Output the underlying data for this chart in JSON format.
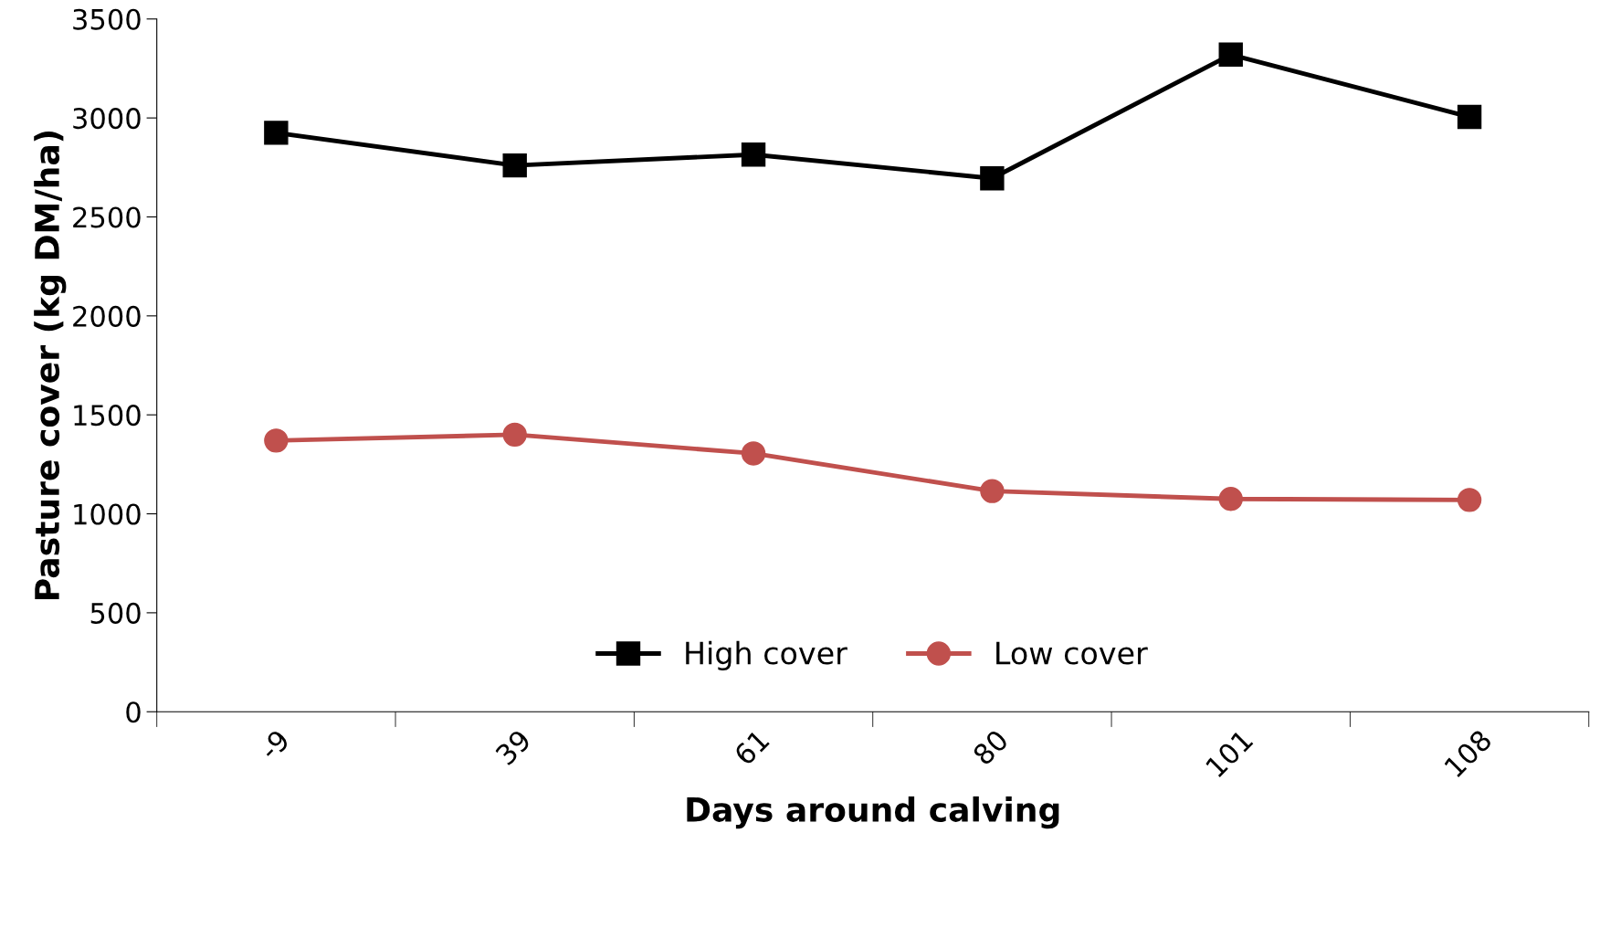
{
  "chart_data": {
    "type": "line",
    "xlabel": "Days around calving",
    "ylabel": "Pasture cover (kg DM/ha)",
    "categories": [
      "-9",
      "39",
      "61",
      "80",
      "101",
      "108"
    ],
    "series": [
      {
        "name": "High cover",
        "color": "#000000",
        "marker": "square",
        "values": [
          2925,
          2760,
          2815,
          2695,
          3320,
          3005
        ]
      },
      {
        "name": "Low cover",
        "color": "#c0504d",
        "marker": "circle",
        "values": [
          1370,
          1400,
          1305,
          1115,
          1075,
          1070
        ]
      }
    ],
    "ylim": [
      0,
      3500
    ],
    "yticks": [
      0,
      500,
      1000,
      1500,
      2000,
      2500,
      3000,
      3500
    ],
    "grid": false,
    "legend": "bottom",
    "line_style": "solid"
  }
}
